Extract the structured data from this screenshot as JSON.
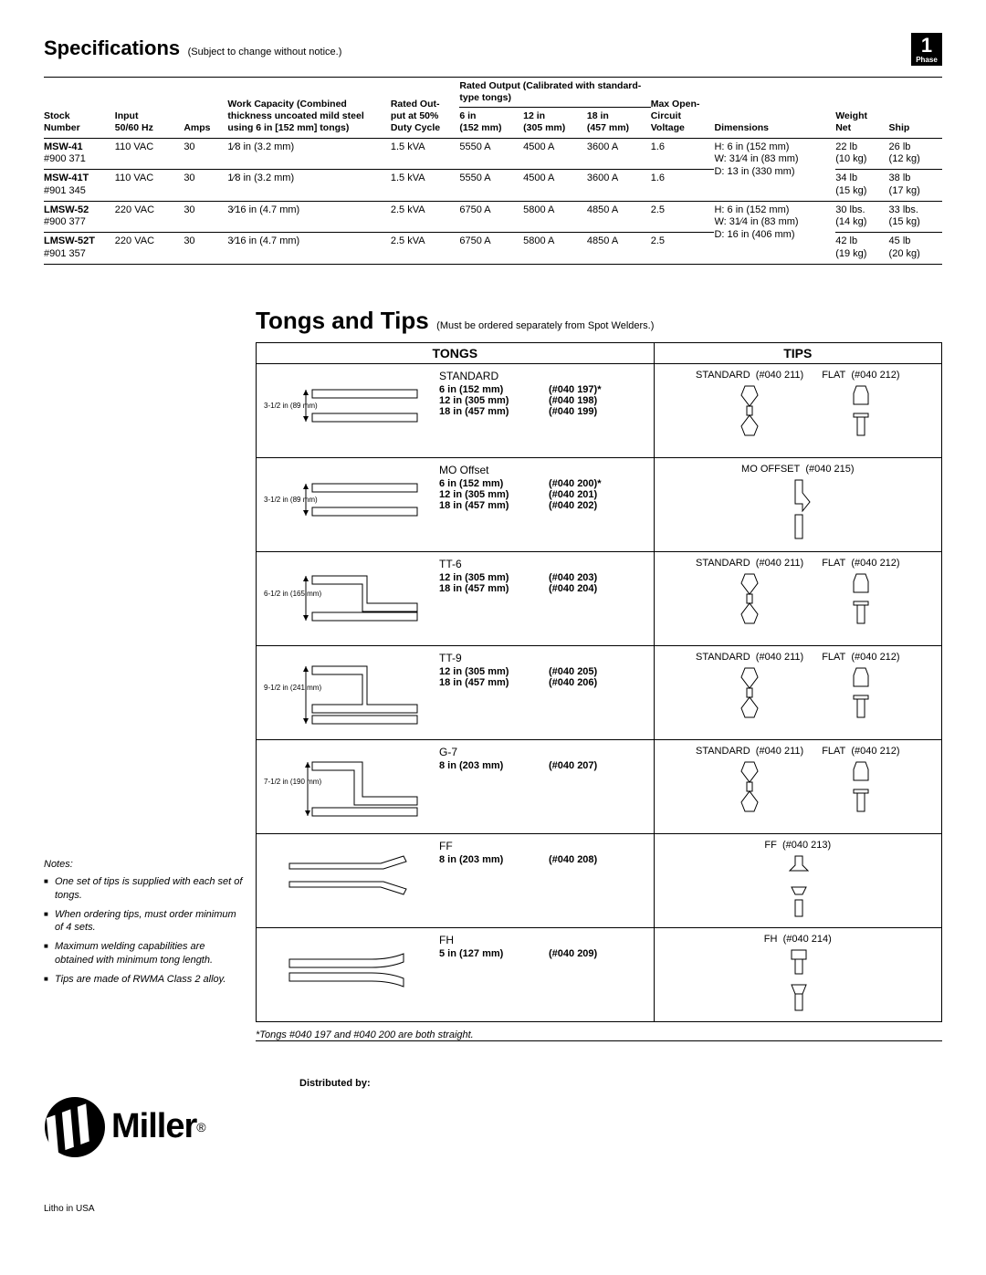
{
  "phase": {
    "num": "1",
    "label": "Phase"
  },
  "specHeader": {
    "title": "Specifications",
    "sub": "(Subject to change without notice.)"
  },
  "specCols": {
    "stock": "Stock\nNumber",
    "input": "Input\n50/60 Hz",
    "amps": "Amps",
    "capacity": "Work Capacity (Combined\nthickness uncoated mild steel\nusing 6 in [152 mm] tongs)",
    "rated": "Rated Out-\nput at 50%\nDuty Cycle",
    "ratedOutHead": "Rated Output (Calibrated with standard-type tongs)",
    "r6": "6 in\n(152 mm)",
    "r12": "12 in\n(305 mm)",
    "r18": "18 in\n(457 mm)",
    "maxopen": "Max Open-\nCircuit\nVoltage",
    "dim": "Dimensions",
    "wnet": "Weight\nNet",
    "ship": "Ship"
  },
  "specRows": [
    {
      "stock": "MSW-41",
      "pn": "#900 371",
      "input": "110 VAC",
      "amps": "30",
      "cap": "1⁄8 in (3.2 mm)",
      "rated": "1.5 kVA",
      "r6": "5550 A",
      "r12": "4500 A",
      "r18": "3600 A",
      "ocv": "1.6",
      "dim": "H: 6 in (152 mm)\nW: 31⁄4 in (83 mm)\nD: 13 in (330 mm)",
      "net": "22 lb\n(10 kg)",
      "ship": "26 lb\n(12 kg)",
      "dimspan": 2
    },
    {
      "stock": "MSW-41T",
      "pn": "#901 345",
      "input": "110 VAC",
      "amps": "30",
      "cap": "1⁄8 in (3.2 mm)",
      "rated": "1.5 kVA",
      "r6": "5550 A",
      "r12": "4500 A",
      "r18": "3600 A",
      "ocv": "1.6",
      "net": "34 lb\n(15 kg)",
      "ship": "38 lb\n(17 kg)"
    },
    {
      "stock": "LMSW-52",
      "pn": "#900 377",
      "input": "220 VAC",
      "amps": "30",
      "cap": "3⁄16 in (4.7 mm)",
      "rated": "2.5 kVA",
      "r6": "6750 A",
      "r12": "5800 A",
      "r18": "4850 A",
      "ocv": "2.5",
      "dim": "H: 6 in (152 mm)\nW: 31⁄4 in (83 mm)\nD: 16 in (406 mm)",
      "net": "30 lbs.\n(14 kg)",
      "ship": "33 lbs.\n(15 kg)",
      "dimspan": 2
    },
    {
      "stock": "LMSW-52T",
      "pn": "#901 357",
      "input": "220 VAC",
      "amps": "30",
      "cap": "3⁄16 in (4.7 mm)",
      "rated": "2.5 kVA",
      "r6": "6750 A",
      "r12": "5800 A",
      "r18": "4850 A",
      "ocv": "2.5",
      "net": "42 lb\n(19 kg)",
      "ship": "45 lb\n(20 kg)"
    }
  ],
  "tongsHeader": {
    "title": "Tongs and Tips",
    "sub": "(Must be ordered separately from Spot Welders.)"
  },
  "tongsColHead": {
    "tongs": "TONGS",
    "tips": "TIPS"
  },
  "tongsRows": [
    {
      "name": "STANDARD",
      "dim": "3-1/2 in (89 mm)",
      "shape": "straight",
      "lines": [
        [
          "6 in (152 mm)",
          "(#040 197)*"
        ],
        [
          "12 in (305 mm)",
          "(#040 198)"
        ],
        [
          "18 in (457 mm)",
          "(#040 199)"
        ]
      ],
      "tips": [
        {
          "label": "STANDARD",
          "pn": "(#040 211)",
          "shape": "std"
        },
        {
          "label": "FLAT",
          "pn": "(#040 212)",
          "shape": "flat"
        }
      ]
    },
    {
      "name": "MO Offset",
      "dim": "3-1/2 in (89 mm)",
      "shape": "straight",
      "lines": [
        [
          "6 in (152 mm)",
          "(#040 200)*"
        ],
        [
          "12 in (305 mm)",
          "(#040 201)"
        ],
        [
          "18 in (457 mm)",
          "(#040 202)"
        ]
      ],
      "tips": [
        {
          "label": "MO OFFSET",
          "pn": "(#040 215)",
          "shape": "mo"
        }
      ]
    },
    {
      "name": "TT-6",
      "dim": "6-1/2 in (165 mm)",
      "shape": "tt",
      "lines": [
        [
          "12 in (305 mm)",
          "(#040 203)"
        ],
        [
          "18 in (457 mm)",
          "(#040 204)"
        ]
      ],
      "tips": [
        {
          "label": "STANDARD",
          "pn": "(#040 211)",
          "shape": "std"
        },
        {
          "label": "FLAT",
          "pn": "(#040 212)",
          "shape": "flat"
        }
      ]
    },
    {
      "name": "TT-9",
      "dim": "9-1/2 in (241 mm)",
      "shape": "tt9",
      "lines": [
        [
          "12 in (305 mm)",
          "(#040 205)"
        ],
        [
          "18 in (457 mm)",
          "(#040 206)"
        ]
      ],
      "tips": [
        {
          "label": "STANDARD",
          "pn": "(#040 211)",
          "shape": "std"
        },
        {
          "label": "FLAT",
          "pn": "(#040 212)",
          "shape": "flat"
        }
      ]
    },
    {
      "name": "G-7",
      "dim": "7-1/2 in\n(190 mm)",
      "shape": "g7",
      "lines": [
        [
          "8 in (203 mm)",
          "(#040 207)"
        ]
      ],
      "tips": [
        {
          "label": "STANDARD",
          "pn": "(#040 211)",
          "shape": "std"
        },
        {
          "label": "FLAT",
          "pn": "(#040 212)",
          "shape": "flat"
        }
      ]
    },
    {
      "name": "FF",
      "dim": "",
      "shape": "ff",
      "lines": [
        [
          "8 in (203 mm)",
          "(#040 208)"
        ]
      ],
      "tips": [
        {
          "label": "FF",
          "pn": "(#040 213)",
          "shape": "ff"
        }
      ]
    },
    {
      "name": "FH",
      "dim": "",
      "shape": "fh",
      "lines": [
        [
          "5 in (127 mm)",
          "(#040 209)"
        ]
      ],
      "tips": [
        {
          "label": "FH",
          "pn": "(#040 214)",
          "shape": "fh"
        }
      ]
    }
  ],
  "footnote": "*Tongs #040 197 and #040 200 are both straight.",
  "notesTitle": "Notes:",
  "notes": [
    "One set of tips is supplied with each set of tongs.",
    "When ordering tips, must order minimum of 4 sets.",
    "Maximum welding capabilities are obtained with minimum tong length.",
    "Tips are made of RWMA Class 2 alloy."
  ],
  "distBy": "Distributed by:",
  "brand": "Miller",
  "litho": "Litho in USA"
}
